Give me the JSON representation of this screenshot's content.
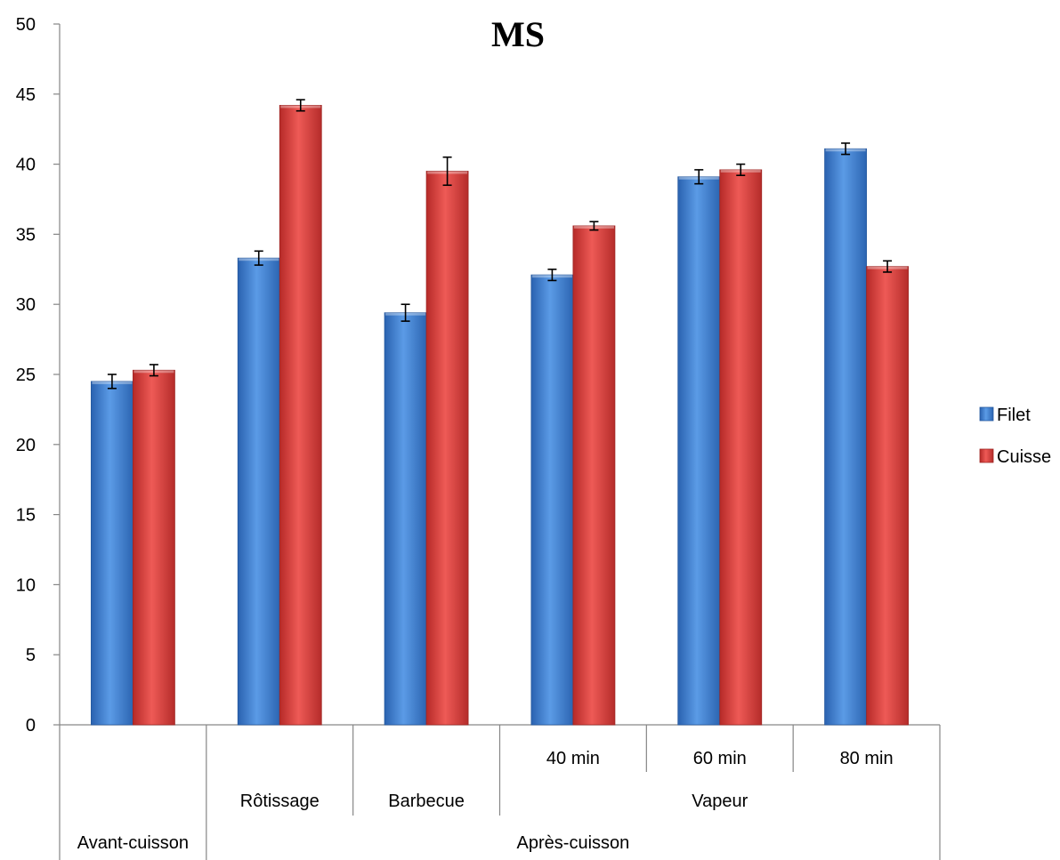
{
  "chart_data": {
    "type": "bar",
    "title": "MS",
    "xlabel": "",
    "ylabel": "",
    "ylim": [
      0,
      50
    ],
    "yticks": [
      0,
      5,
      10,
      15,
      20,
      25,
      30,
      35,
      40,
      45,
      50
    ],
    "grid": false,
    "legend_position": "right",
    "categories": [
      "Avant-cuisson",
      "Rôtissage",
      "Barbecue",
      "40 min",
      "60 min",
      "80 min"
    ],
    "category_groups": {
      "level2": [
        {
          "label": "",
          "span": [
            0,
            0
          ]
        },
        {
          "label": "Rôtissage",
          "span": [
            1,
            1
          ]
        },
        {
          "label": "Barbecue",
          "span": [
            2,
            2
          ]
        },
        {
          "label": "Vapeur",
          "span": [
            3,
            5
          ]
        }
      ],
      "level3": [
        {
          "label": "Avant-cuisson",
          "span": [
            0,
            0
          ]
        },
        {
          "label": "Après-cuisson",
          "span": [
            1,
            5
          ]
        }
      ]
    },
    "series": [
      {
        "name": "Filet",
        "color": "#3c7dcf",
        "values": [
          24.5,
          33.3,
          29.4,
          32.1,
          39.1,
          41.1
        ],
        "errors": [
          0.5,
          0.5,
          0.6,
          0.4,
          0.5,
          0.4
        ]
      },
      {
        "name": "Cuisse",
        "color": "#d93a38",
        "values": [
          25.3,
          44.2,
          39.5,
          35.6,
          39.6,
          32.7
        ],
        "errors": [
          0.4,
          0.4,
          1.0,
          0.3,
          0.4,
          0.4
        ]
      }
    ]
  }
}
